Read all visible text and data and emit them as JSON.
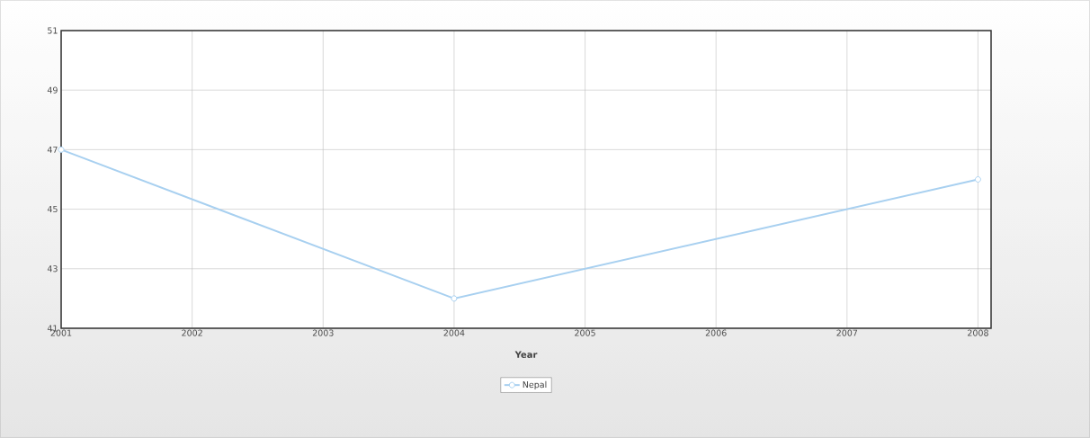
{
  "chart_data": {
    "type": "line",
    "xlabel": "Year",
    "x": [
      2001,
      2004,
      2008
    ],
    "series": [
      {
        "name": "Nepal",
        "color": "#a8d0f0",
        "values": [
          47,
          42,
          46
        ]
      }
    ],
    "xlim": [
      2001,
      2008.1
    ],
    "xticks": [
      2001,
      2002,
      2003,
      2004,
      2005,
      2006,
      2007,
      2008
    ],
    "ylim": [
      41,
      51
    ],
    "yticks": [
      41,
      43,
      45,
      47,
      49,
      51
    ],
    "grid": true,
    "legend": "bottom",
    "marker": "circle",
    "line_style": "solid"
  }
}
